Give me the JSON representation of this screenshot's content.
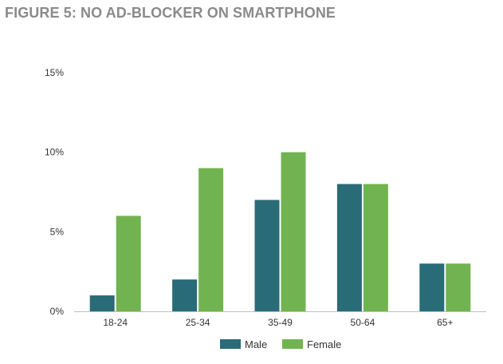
{
  "title": "FIGURE 5: NO AD-BLOCKER ON SMARTPHONE",
  "chart_data": {
    "type": "bar",
    "categories": [
      "18-24",
      "25-34",
      "35-49",
      "50-64",
      "65+"
    ],
    "series": [
      {
        "name": "Male",
        "color": "#2a6b78",
        "values": [
          1,
          2,
          7,
          8,
          3
        ]
      },
      {
        "name": "Female",
        "color": "#72b351",
        "values": [
          6,
          9,
          10,
          8,
          3
        ]
      }
    ],
    "yticks": [
      0,
      5,
      10,
      15
    ],
    "ytick_labels": [
      "0%",
      "5%",
      "10%",
      "15%"
    ],
    "ylim": [
      0,
      15
    ],
    "xlabel": "",
    "ylabel": "",
    "grid": false,
    "legend_position": "bottom"
  }
}
